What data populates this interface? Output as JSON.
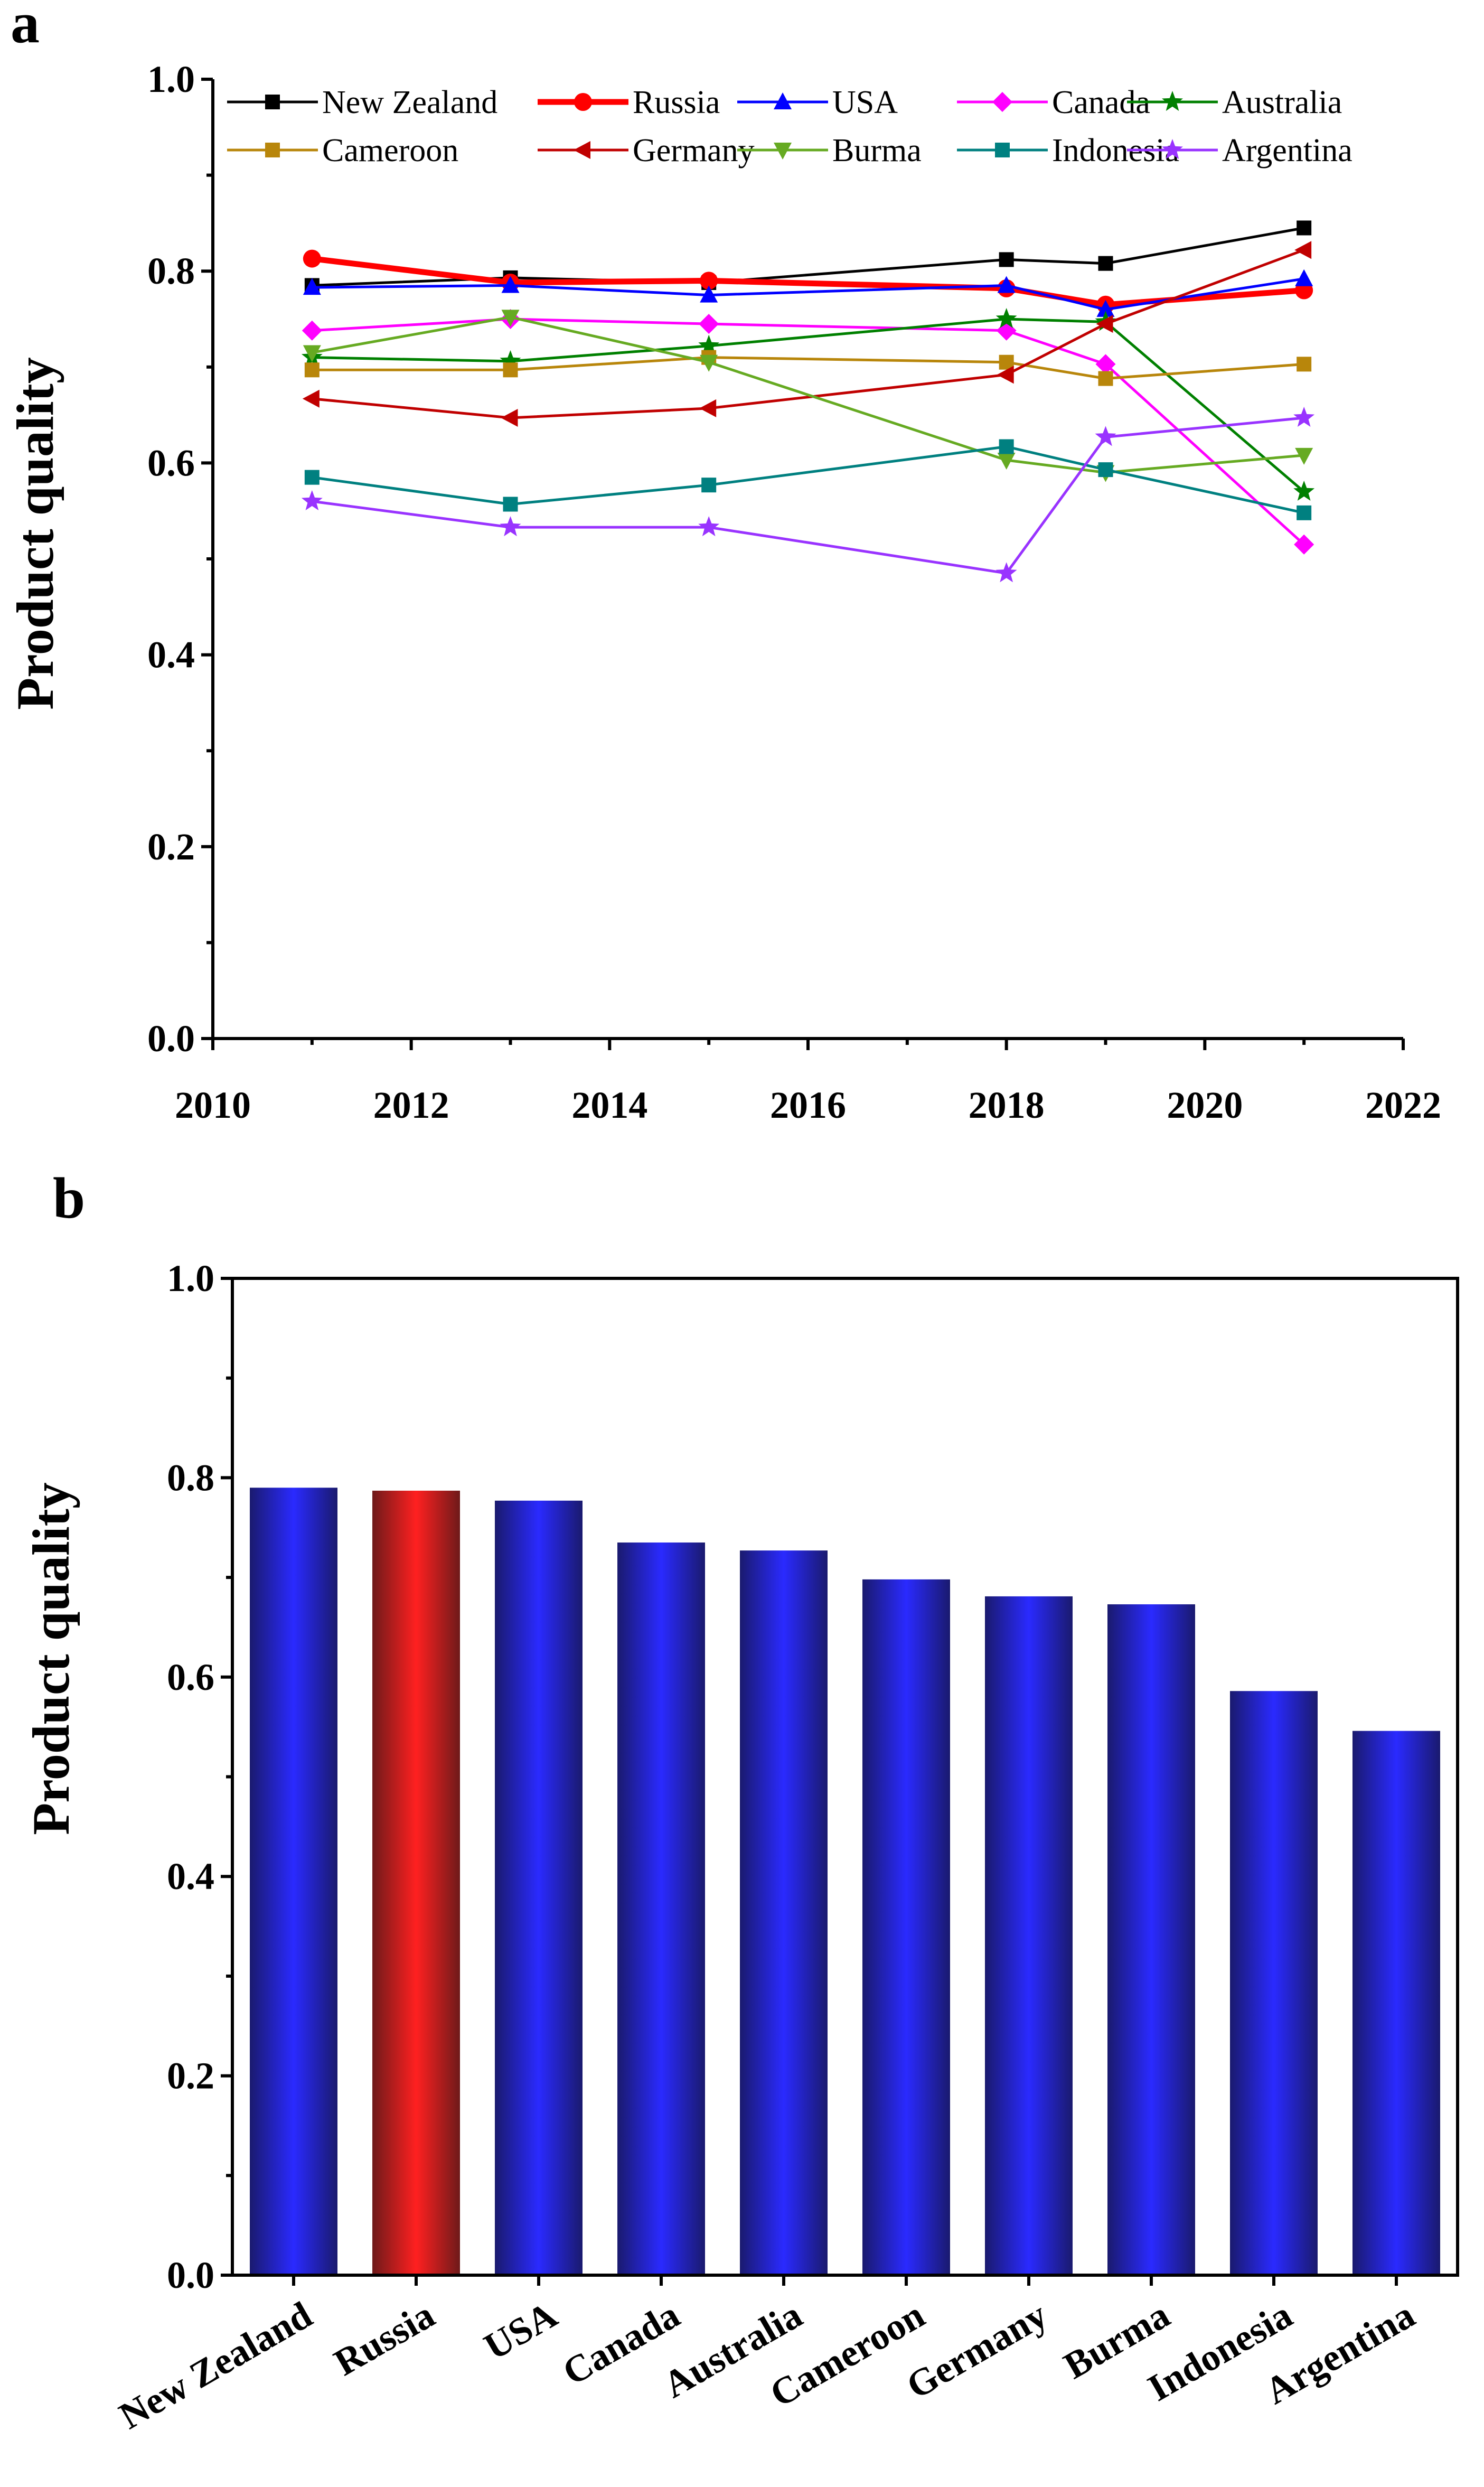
{
  "colors": {
    "New Zealand": "#000000",
    "Russia": "#ff0000",
    "USA": "#0000ff",
    "Canada": "#ff00ff",
    "Australia": "#008000",
    "Cameroon": "#b8860b",
    "Germany": "#c00000",
    "Burma": "#66aa22",
    "Indonesia": "#008080",
    "Argentina": "#9933ff",
    "bar_blue": "#2a2aff",
    "bar_red": "#ff2020"
  },
  "chart_data": [
    {
      "type": "line",
      "panel_label": "a",
      "title": "",
      "xlabel": "",
      "ylabel": "Product quality",
      "xlim": [
        2010,
        2022
      ],
      "ylim": [
        0.0,
        1.0
      ],
      "xticks": [
        "2010",
        "2012",
        "2014",
        "2016",
        "2018",
        "2020",
        "2022"
      ],
      "yticks": [
        "0.0",
        "0.2",
        "0.4",
        "0.6",
        "0.8",
        "1.0"
      ],
      "x": [
        2011,
        2013,
        2015,
        2018,
        2019,
        2021
      ],
      "legend_position": "top",
      "series": [
        {
          "name": "New Zealand",
          "marker": "square",
          "values": [
            0.785,
            0.793,
            0.788,
            0.812,
            0.808,
            0.845
          ]
        },
        {
          "name": "Russia",
          "marker": "circle",
          "values": [
            0.813,
            0.788,
            0.79,
            0.782,
            0.765,
            0.78
          ]
        },
        {
          "name": "USA",
          "marker": "triangle-up",
          "values": [
            0.783,
            0.785,
            0.775,
            0.785,
            0.76,
            0.792
          ]
        },
        {
          "name": "Canada",
          "marker": "diamond",
          "values": [
            0.738,
            0.75,
            0.745,
            0.738,
            0.703,
            0.515
          ]
        },
        {
          "name": "Australia",
          "marker": "star",
          "values": [
            0.71,
            0.706,
            0.722,
            0.75,
            0.747,
            0.57
          ]
        },
        {
          "name": "Cameroon",
          "marker": "square",
          "values": [
            0.697,
            0.697,
            0.71,
            0.705,
            0.688,
            0.703
          ]
        },
        {
          "name": "Germany",
          "marker": "triangle-left",
          "values": [
            0.667,
            0.647,
            0.657,
            0.692,
            0.745,
            0.822
          ]
        },
        {
          "name": "Burma",
          "marker": "triangle-down",
          "values": [
            0.715,
            0.752,
            0.705,
            0.603,
            0.59,
            0.608
          ]
        },
        {
          "name": "Indonesia",
          "marker": "square",
          "values": [
            0.585,
            0.557,
            0.577,
            0.617,
            0.593,
            0.548
          ]
        },
        {
          "name": "Argentina",
          "marker": "star",
          "values": [
            0.56,
            0.533,
            0.533,
            0.485,
            0.627,
            0.647
          ]
        }
      ]
    },
    {
      "type": "bar",
      "panel_label": "b",
      "title": "",
      "xlabel": "",
      "ylabel": "Product quality",
      "ylim": [
        0.0,
        1.0
      ],
      "yticks": [
        "0.0",
        "0.2",
        "0.4",
        "0.6",
        "0.8",
        "1.0"
      ],
      "categories": [
        "New Zealand",
        "Russia",
        "USA",
        "Canada",
        "Australia",
        "Cameroon",
        "Germany",
        "Burma",
        "Indonesia",
        "Argentina"
      ],
      "values": [
        0.79,
        0.787,
        0.777,
        0.735,
        0.727,
        0.698,
        0.681,
        0.673,
        0.586,
        0.546
      ],
      "highlight": "Russia"
    }
  ]
}
